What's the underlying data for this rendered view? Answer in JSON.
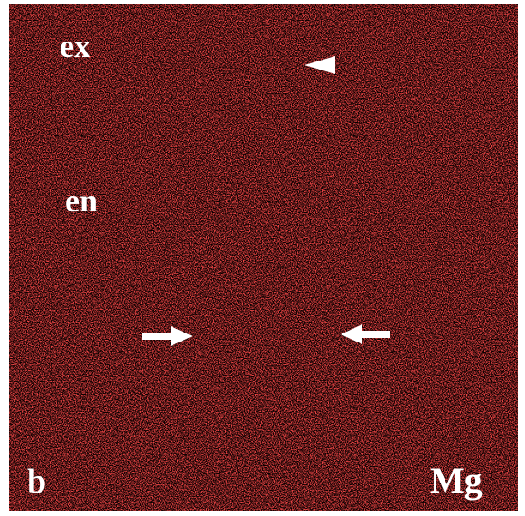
{
  "regions": [
    "ex",
    "en"
  ],
  "panel_label": "b",
  "element": "Mg"
}
